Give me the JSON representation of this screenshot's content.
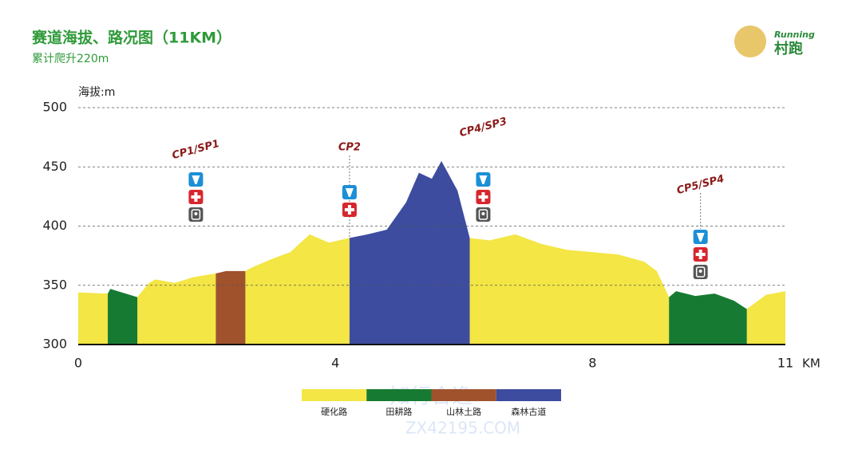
{
  "chart_data": {
    "type": "area",
    "title": "赛道海拔、路况图（11KM）",
    "subtitle": "累计爬升220m",
    "y_label": "海拔:m",
    "x_label": "KM",
    "logo": [
      "Running",
      "村跑"
    ],
    "watermark": [
      "知行合逸",
      "ZX42195.COM"
    ],
    "x": [
      0,
      0.46,
      0.5,
      0.92,
      1.1,
      1.2,
      1.5,
      1.8,
      2.14,
      2.3,
      2.6,
      2.7,
      3.0,
      3.3,
      3.6,
      3.9,
      4.22,
      4.5,
      4.8,
      5.1,
      5.3,
      5.5,
      5.65,
      5.9,
      6.09,
      6.4,
      6.8,
      7.2,
      7.6,
      8.0,
      8.4,
      8.8,
      9.0,
      9.19,
      9.3,
      9.6,
      9.9,
      10.2,
      10.4,
      10.7,
      11.0
    ],
    "series": [
      {
        "name": "硬化路",
        "color": "#f3e645",
        "values": [
          344,
          343,
          null,
          340,
          352,
          355,
          352,
          357,
          360,
          null,
          362,
          365,
          372,
          378,
          393,
          386,
          390,
          null,
          null,
          null,
          null,
          null,
          null,
          null,
          390,
          388,
          393,
          385,
          380,
          378,
          376,
          370,
          362,
          340,
          null,
          null,
          null,
          null,
          330,
          342,
          345
        ]
      },
      {
        "name": "田耕路",
        "color": "#177a32",
        "values": [
          null,
          343,
          347,
          340,
          null,
          null,
          null,
          null,
          null,
          null,
          null,
          null,
          null,
          null,
          null,
          null,
          null,
          null,
          null,
          null,
          null,
          null,
          null,
          null,
          null,
          null,
          null,
          null,
          null,
          null,
          null,
          null,
          null,
          340,
          345,
          341,
          343,
          337,
          330,
          null,
          null
        ]
      },
      {
        "name": "山林土路",
        "color": "#a0522d",
        "values": [
          null,
          null,
          null,
          null,
          null,
          null,
          null,
          null,
          360,
          362,
          362,
          null,
          null,
          null,
          null,
          null,
          null,
          null,
          null,
          null,
          null,
          null,
          null,
          null,
          null,
          null,
          null,
          null,
          null,
          null,
          null,
          null,
          null,
          null,
          null,
          null,
          null,
          null,
          null,
          null,
          null
        ]
      },
      {
        "name": "森林古道",
        "color": "#3d4c9f",
        "values": [
          null,
          null,
          null,
          null,
          null,
          null,
          null,
          null,
          null,
          null,
          null,
          null,
          null,
          null,
          null,
          null,
          390,
          393,
          397,
          420,
          445,
          440,
          455,
          430,
          390,
          null,
          null,
          null,
          null,
          null,
          null,
          null,
          null,
          null,
          null,
          null,
          null,
          null,
          null,
          null,
          null
        ]
      }
    ],
    "markers": [
      {
        "label": "CP1/SP1",
        "x": 1.83
      },
      {
        "label": "CP2",
        "x": 4.22
      },
      {
        "label": "CP4/SP3",
        "x": 6.3
      },
      {
        "label": "CP5/SP4",
        "x": 9.68
      }
    ],
    "xlim": [
      0,
      11
    ],
    "xticks": [
      0,
      4,
      8,
      11
    ],
    "ylim": [
      300,
      500
    ],
    "yticks": [
      300,
      350,
      400,
      450,
      500
    ],
    "grid": true
  }
}
